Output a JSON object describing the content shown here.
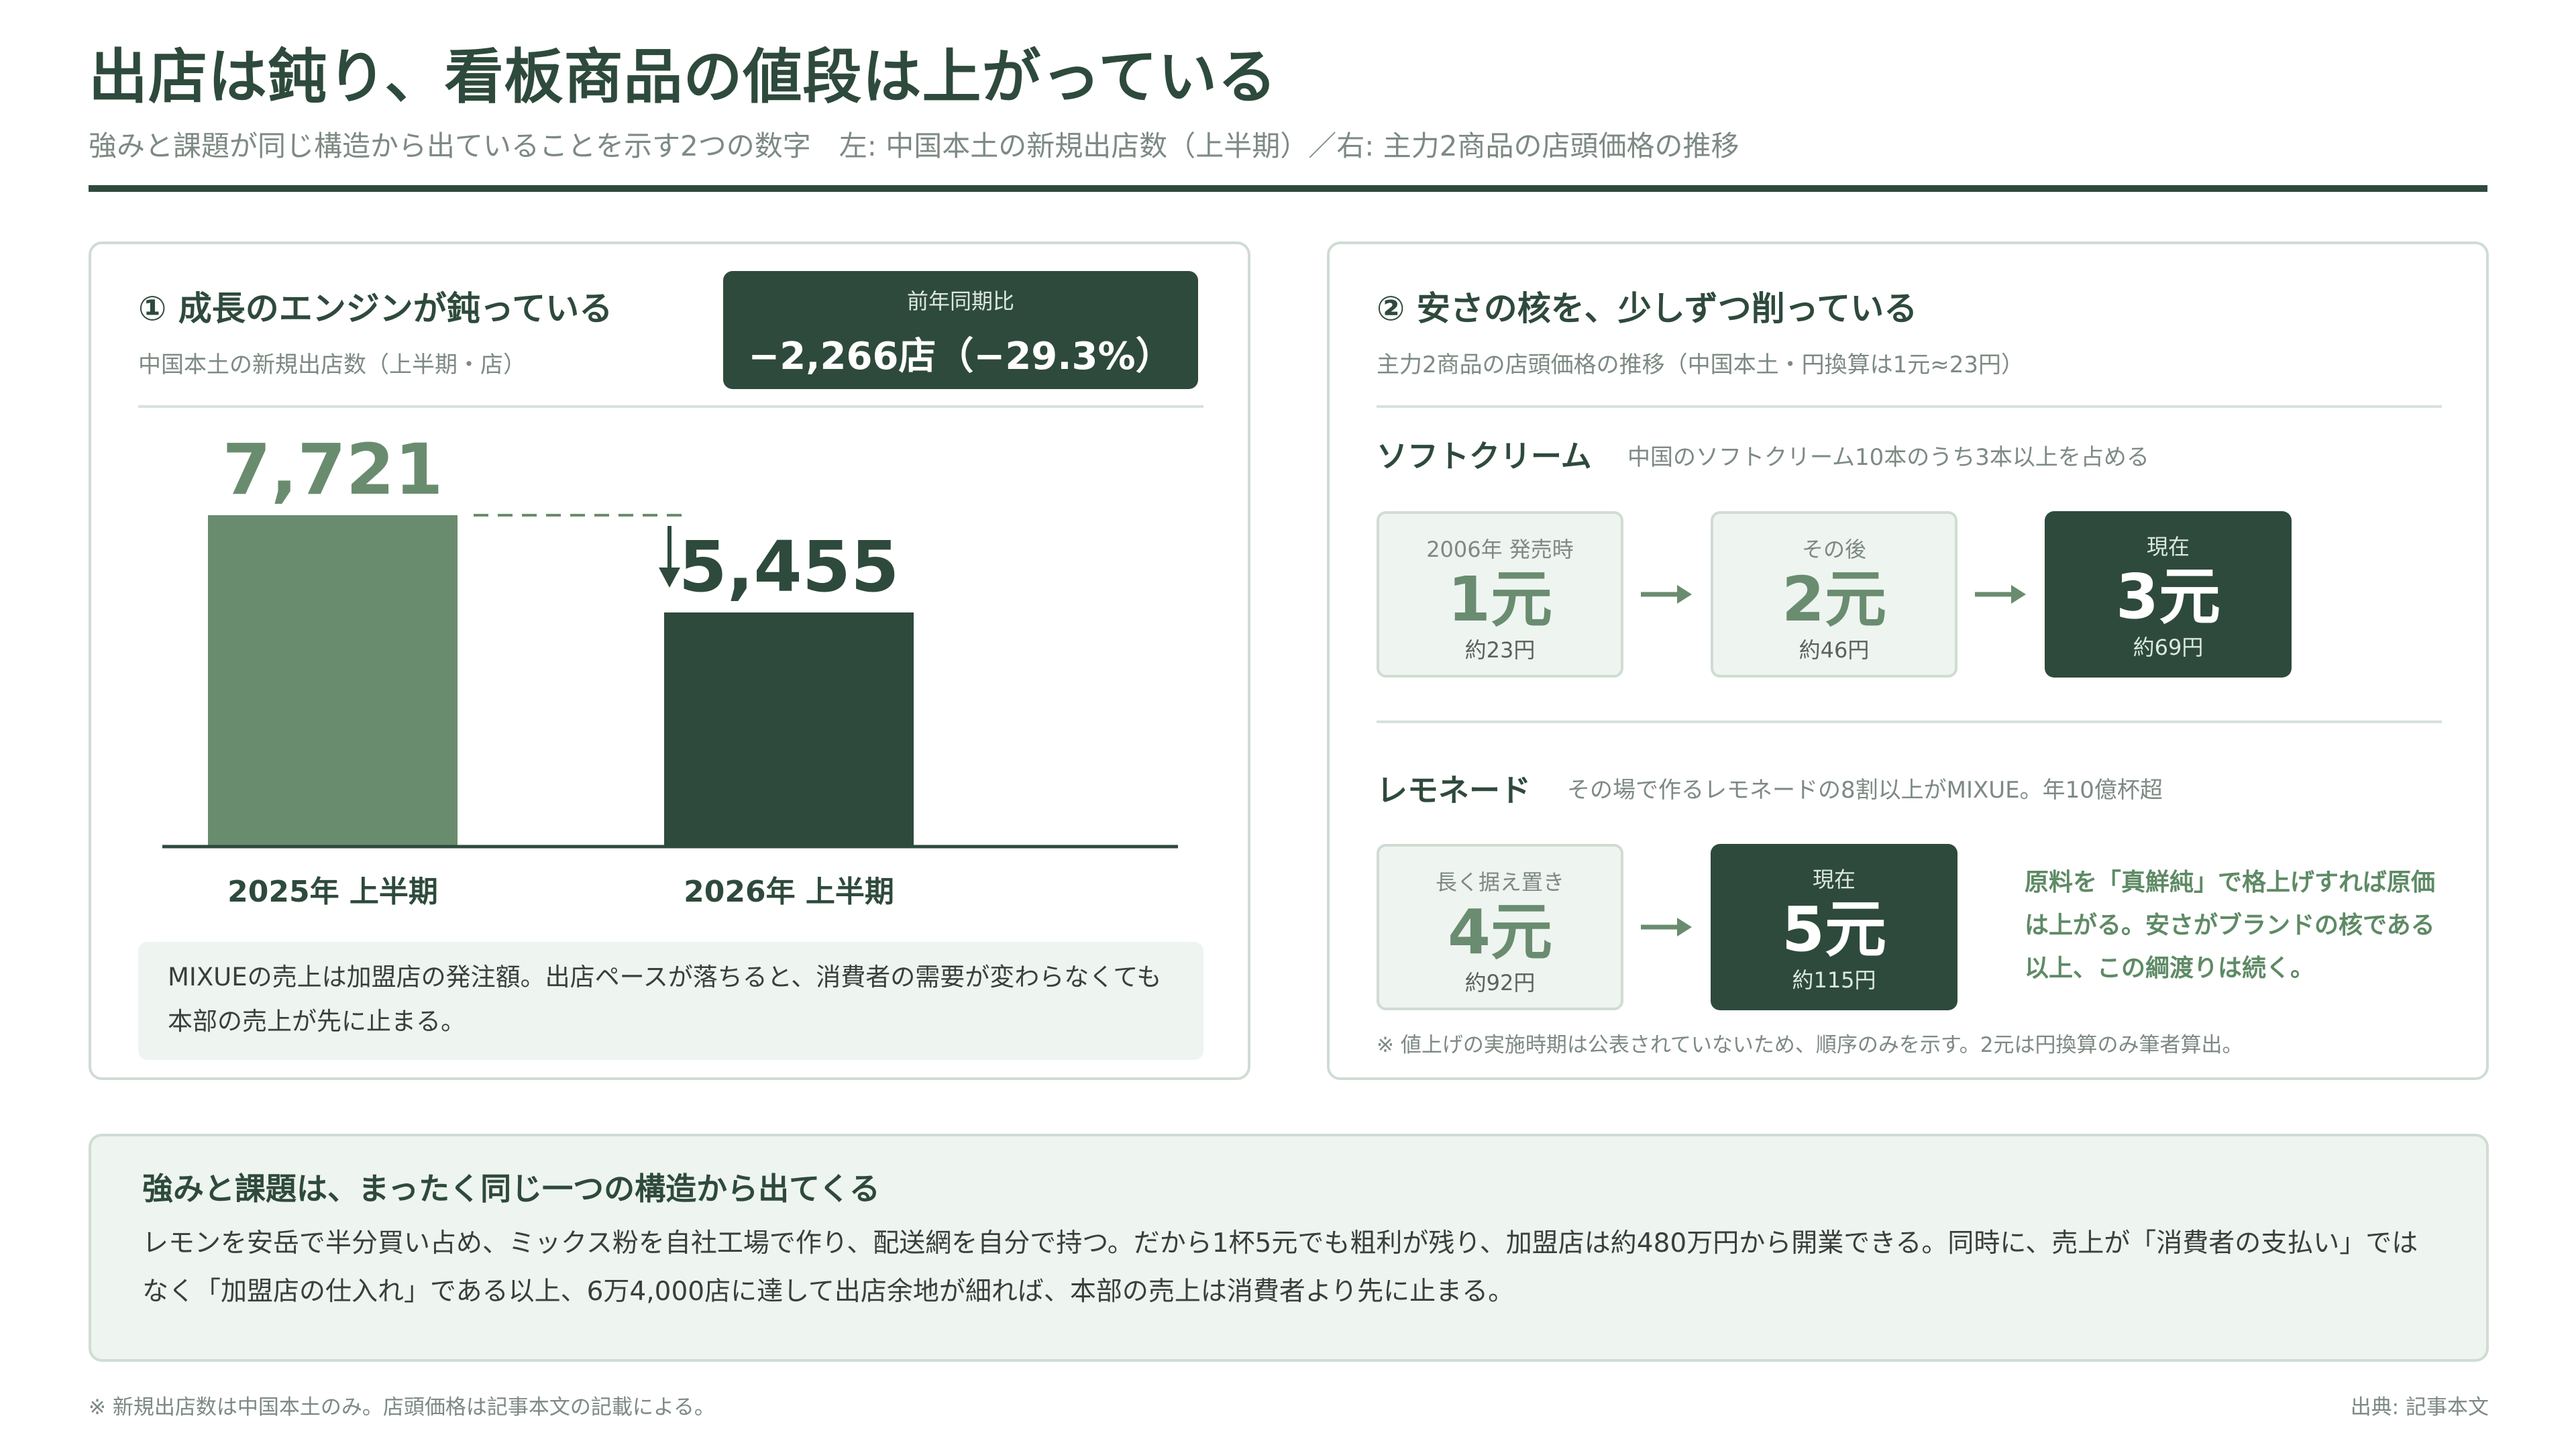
{
  "header": {
    "title": "出店は鈍り、看板商品の値段は上がっている",
    "subtitle": "強みと課題が同じ構造から出ていることを示す2つの数字　左: 中国本土の新規出店数（上半期）／右: 主力2商品の店頭価格の推移"
  },
  "left_panel": {
    "heading": "①  成長のエンジンが鈍っている",
    "subheading": "中国本土の新規出店数（上半期・店）",
    "kpi_label": "前年同期比",
    "kpi_value": "−2,266店（−29.3%）",
    "note": "MIXUEの売上は加盟店の発注額。出店ペースが落ちると、消費者の需要が変わらなくても本部の売上が先に止まる。"
  },
  "chart_data": {
    "type": "bar",
    "categories": [
      "2025年 上半期",
      "2026年 上半期"
    ],
    "values": [
      7721,
      5455
    ],
    "value_labels": [
      "7,721",
      "5,455"
    ],
    "colors": [
      "#6a8c6e",
      "#2e4a3c"
    ],
    "ylim": [
      0,
      7721
    ]
  },
  "right_panel": {
    "heading": "②  安さの核を、少しずつ削っている",
    "subheading": "主力2商品の店頭価格の推移（中国本土・円換算は1元≈23円）",
    "softcream": {
      "title": "ソフトクリーム",
      "desc": "中国のソフトクリーム10本のうち3本以上を占める",
      "steps": [
        {
          "label": "2006年 発売時",
          "value": "1元",
          "yen": "約23円"
        },
        {
          "label": "その後",
          "value": "2元",
          "yen": "約46円"
        },
        {
          "label": "現在",
          "value": "3元",
          "yen": "約69円"
        }
      ]
    },
    "lemonade": {
      "title": "レモネード",
      "desc": "その場で作るレモネードの8割以上がMIXUE。年10億杯超",
      "steps": [
        {
          "label": "長く据え置き",
          "value": "4元",
          "yen": "約92円"
        },
        {
          "label": "現在",
          "value": "5元",
          "yen": "約115円"
        }
      ],
      "callout": "原料を「真鮮純」で格上げすれば原価は上がる。安さがブランドの核である以上、この綱渡りは続く。"
    },
    "footnote": "※ 値上げの実施時期は公表されていないため、順序のみを示す。2元は円換算のみ筆者算出。"
  },
  "bottom": {
    "title": "強みと課題は、まったく同じ一つの構造から出てくる",
    "body": "レモンを安岳で半分買い占め、ミックス粉を自社工場で作り、配送網を自分で持つ。だから1杯5元でも粗利が残り、加盟店は約480万円から開業できる。同時に、売上が「消費者の支払い」ではなく「加盟店の仕入れ」である以上、6万4,000店に達して出店余地が細れば、本部の売上は消費者より先に止まる。"
  },
  "footer": {
    "left": "※ 新規出店数は中国本土のみ。店頭価格は記事本文の記載による。",
    "right": "出典: 記事本文"
  }
}
